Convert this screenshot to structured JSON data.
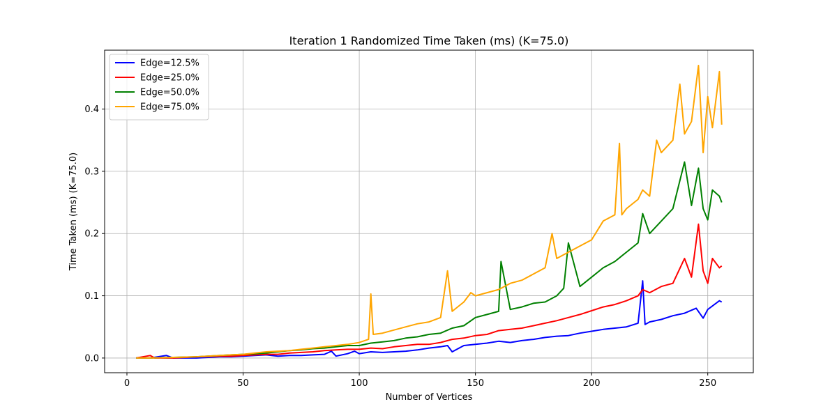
{
  "chart_data": {
    "type": "line",
    "title": "Iteration 1 Randomized Time Taken (ms) (K=75.0)",
    "xlabel": "Number of Vertices",
    "ylabel": "Time Taken (ms) (K=75.0)",
    "xlim": [
      -9.6,
      269.6
    ],
    "ylim": [
      -0.0236,
      0.4946
    ],
    "xticks": [
      0,
      50,
      100,
      150,
      200,
      250
    ],
    "yticks": [
      0.0,
      0.1,
      0.2,
      0.3,
      0.4
    ],
    "xtick_labels": [
      "0",
      "50",
      "100",
      "150",
      "200",
      "250"
    ],
    "ytick_labels": [
      "0.0",
      "0.1",
      "0.2",
      "0.3",
      "0.4"
    ],
    "grid": true,
    "legend_position": "top-left",
    "series": [
      {
        "name": "Edge=12.5%",
        "color": "#0000ff",
        "x": [
          4,
          10,
          17,
          20,
          30,
          40,
          45,
          50,
          55,
          60,
          65,
          70,
          75,
          80,
          85,
          88,
          90,
          95,
          98,
          100,
          105,
          110,
          115,
          120,
          125,
          130,
          135,
          138,
          140,
          145,
          150,
          155,
          160,
          165,
          170,
          175,
          180,
          185,
          190,
          195,
          200,
          205,
          210,
          215,
          220,
          222,
          223,
          225,
          230,
          235,
          240,
          245,
          248,
          250,
          255,
          256
        ],
        "y": [
          0.0,
          0.0,
          0.004,
          0.0,
          0.0,
          0.002,
          0.002,
          0.003,
          0.004,
          0.005,
          0.003,
          0.004,
          0.004,
          0.005,
          0.006,
          0.011,
          0.003,
          0.007,
          0.011,
          0.007,
          0.01,
          0.009,
          0.01,
          0.011,
          0.013,
          0.016,
          0.018,
          0.02,
          0.01,
          0.02,
          0.022,
          0.024,
          0.027,
          0.025,
          0.028,
          0.03,
          0.033,
          0.035,
          0.036,
          0.04,
          0.043,
          0.046,
          0.048,
          0.05,
          0.056,
          0.124,
          0.054,
          0.058,
          0.062,
          0.068,
          0.072,
          0.08,
          0.064,
          0.078,
          0.092,
          0.09
        ]
      },
      {
        "name": "Edge=25.0%",
        "color": "#ff0000",
        "x": [
          4,
          10,
          12,
          20,
          30,
          40,
          45,
          50,
          55,
          60,
          65,
          70,
          75,
          80,
          85,
          90,
          95,
          100,
          105,
          110,
          115,
          120,
          125,
          130,
          135,
          140,
          145,
          150,
          155,
          160,
          165,
          170,
          175,
          180,
          185,
          190,
          195,
          200,
          205,
          210,
          215,
          220,
          222,
          225,
          230,
          235,
          240,
          243,
          246,
          248,
          250,
          252,
          255,
          256
        ],
        "y": [
          0.0,
          0.004,
          0.0,
          0.0,
          0.002,
          0.003,
          0.003,
          0.004,
          0.005,
          0.006,
          0.006,
          0.008,
          0.009,
          0.01,
          0.012,
          0.013,
          0.014,
          0.014,
          0.016,
          0.015,
          0.018,
          0.02,
          0.022,
          0.022,
          0.025,
          0.03,
          0.032,
          0.036,
          0.038,
          0.044,
          0.046,
          0.048,
          0.052,
          0.056,
          0.06,
          0.065,
          0.07,
          0.076,
          0.082,
          0.086,
          0.092,
          0.1,
          0.11,
          0.105,
          0.115,
          0.12,
          0.16,
          0.13,
          0.215,
          0.14,
          0.12,
          0.16,
          0.145,
          0.148
        ]
      },
      {
        "name": "Edge=50.0%",
        "color": "#008000",
        "x": [
          4,
          10,
          20,
          30,
          40,
          45,
          50,
          55,
          60,
          65,
          70,
          75,
          80,
          85,
          90,
          95,
          100,
          105,
          110,
          115,
          120,
          125,
          130,
          135,
          140,
          145,
          150,
          155,
          160,
          161,
          165,
          170,
          175,
          180,
          185,
          188,
          190,
          195,
          200,
          205,
          210,
          215,
          220,
          222,
          225,
          230,
          235,
          240,
          243,
          246,
          248,
          250,
          252,
          255,
          256
        ],
        "y": [
          0.0,
          0.0,
          0.001,
          0.002,
          0.004,
          0.005,
          0.006,
          0.007,
          0.008,
          0.01,
          0.012,
          0.013,
          0.015,
          0.016,
          0.018,
          0.02,
          0.02,
          0.024,
          0.026,
          0.028,
          0.032,
          0.034,
          0.038,
          0.04,
          0.048,
          0.052,
          0.065,
          0.07,
          0.075,
          0.155,
          0.078,
          0.082,
          0.088,
          0.09,
          0.1,
          0.112,
          0.185,
          0.115,
          0.13,
          0.145,
          0.155,
          0.17,
          0.185,
          0.232,
          0.2,
          0.22,
          0.24,
          0.315,
          0.245,
          0.305,
          0.24,
          0.222,
          0.27,
          0.26,
          0.25
        ]
      },
      {
        "name": "Edge=75.0%",
        "color": "#ffa500",
        "x": [
          4,
          10,
          20,
          30,
          40,
          45,
          50,
          55,
          60,
          65,
          70,
          75,
          80,
          85,
          90,
          95,
          100,
          104,
          105,
          106,
          110,
          115,
          120,
          125,
          130,
          135,
          138,
          140,
          145,
          148,
          150,
          155,
          160,
          165,
          170,
          175,
          180,
          183,
          185,
          190,
          195,
          200,
          205,
          210,
          212,
          213,
          215,
          220,
          222,
          225,
          228,
          230,
          235,
          238,
          240,
          243,
          246,
          248,
          250,
          252,
          255,
          256
        ],
        "y": [
          0.0,
          0.0,
          0.001,
          0.002,
          0.004,
          0.005,
          0.006,
          0.008,
          0.01,
          0.011,
          0.012,
          0.014,
          0.016,
          0.018,
          0.02,
          0.022,
          0.025,
          0.03,
          0.103,
          0.038,
          0.04,
          0.045,
          0.05,
          0.055,
          0.058,
          0.065,
          0.14,
          0.075,
          0.09,
          0.105,
          0.1,
          0.105,
          0.11,
          0.12,
          0.125,
          0.135,
          0.145,
          0.2,
          0.16,
          0.17,
          0.18,
          0.19,
          0.22,
          0.23,
          0.345,
          0.23,
          0.24,
          0.255,
          0.27,
          0.26,
          0.35,
          0.33,
          0.35,
          0.44,
          0.36,
          0.38,
          0.47,
          0.33,
          0.42,
          0.37,
          0.46,
          0.375
        ]
      }
    ]
  }
}
